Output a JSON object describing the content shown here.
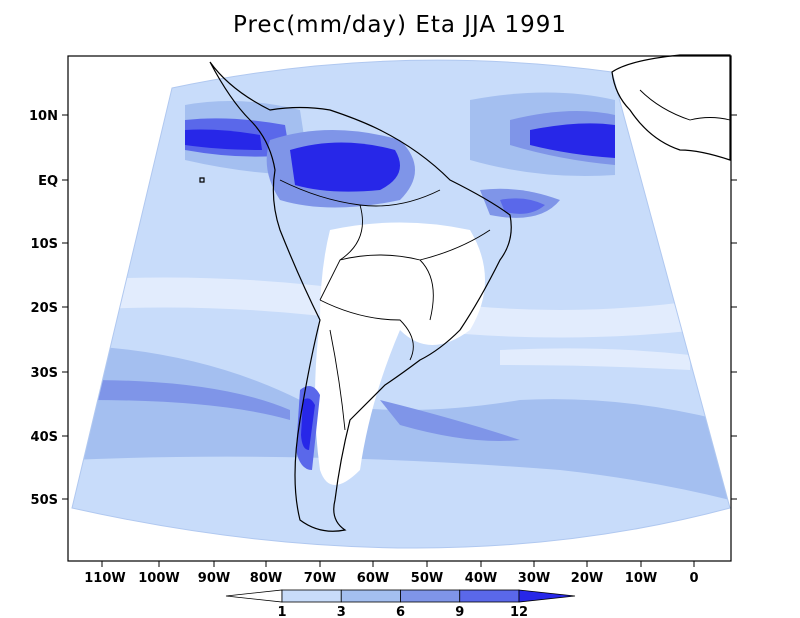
{
  "title": "Prec(mm/day) Eta JJA 1991",
  "map": {
    "lat_ticks": [
      "10N",
      "EQ",
      "10S",
      "20S",
      "30S",
      "40S",
      "50S"
    ],
    "lon_ticks": [
      "110W",
      "100W",
      "90W",
      "80W",
      "70W",
      "60W",
      "50W",
      "40W",
      "30W",
      "20W",
      "10W",
      "0"
    ]
  },
  "legend": {
    "values": [
      "1",
      "3",
      "6",
      "9",
      "12"
    ],
    "colors": [
      "#ffffff",
      "#c8dcfa",
      "#a4bff0",
      "#7f95e8",
      "#5a68ea",
      "#2727e8"
    ]
  }
}
